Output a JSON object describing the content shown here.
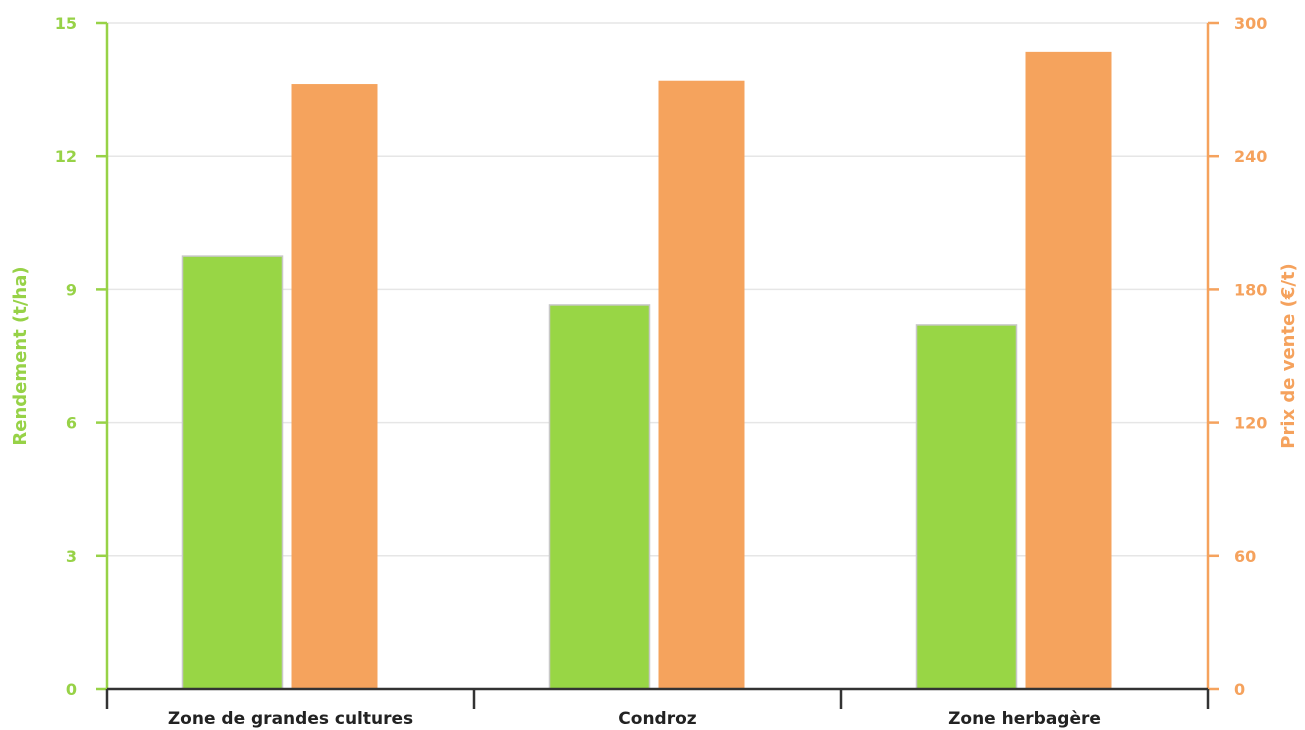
{
  "colors": {
    "left_axis": "#97d247",
    "right_axis": "#f5a25d",
    "series_left_fill": "#98d645",
    "series_right_fill": "#f5a35d",
    "bar_stroke": "#c8c8c8",
    "grid": "#e6e6e6",
    "x_axis": "#333333"
  },
  "chart_data": {
    "type": "bar",
    "title": "",
    "categories": [
      "Zone de grandes cultures",
      "Condroz",
      "Zone herbagère"
    ],
    "series": [
      {
        "axis": "left",
        "values": [
          9.75,
          8.65,
          8.2
        ]
      },
      {
        "axis": "right",
        "values": [
          272.5,
          274.0,
          287.0
        ]
      }
    ],
    "y_left": {
      "label": "Rendement (t/ha)",
      "lim": [
        0,
        15
      ],
      "ticks": [
        0,
        3,
        6,
        9,
        12,
        15
      ]
    },
    "y_right": {
      "label": "Prix de vente (€/t)",
      "lim": [
        0,
        300
      ],
      "ticks": [
        0,
        60,
        120,
        180,
        240,
        300
      ]
    },
    "grid": true,
    "legend": "none"
  }
}
